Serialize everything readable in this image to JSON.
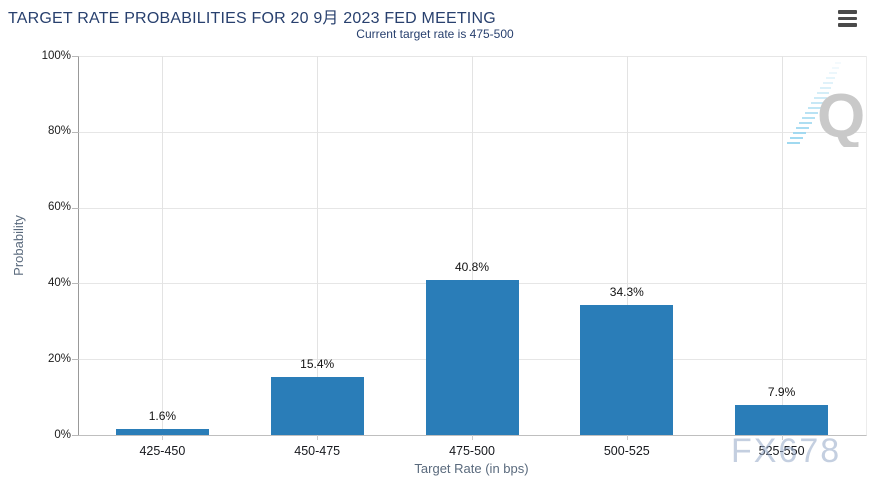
{
  "header": {
    "title": "TARGET RATE PROBABILITIES FOR 20 9月 2023 FED MEETING",
    "subtitle": "Current target rate is 475-500",
    "menu_icon": "hamburger-icon"
  },
  "chart_data": {
    "type": "bar",
    "title": "TARGET RATE PROBABILITIES FOR 20 9月 2023 FED MEETING",
    "subtitle": "Current target rate is 475-500",
    "categories": [
      "425-450",
      "450-475",
      "475-500",
      "500-525",
      "525-550"
    ],
    "values": [
      1.6,
      15.4,
      40.8,
      34.3,
      7.9
    ],
    "value_labels": [
      "1.6%",
      "15.4%",
      "40.8%",
      "34.3%",
      "7.9%"
    ],
    "xlabel": "Target Rate (in bps)",
    "ylabel": "Probability",
    "ylim": [
      0,
      100
    ],
    "yticks": [
      0,
      20,
      40,
      60,
      80,
      100
    ],
    "ytick_labels": [
      "0%",
      "20%",
      "40%",
      "60%",
      "80%",
      "100%"
    ],
    "grid": true,
    "legend": "none",
    "bar_color": "#2a7db8"
  },
  "watermarks": {
    "brand": "FX678",
    "logo_letter": "Q"
  },
  "colors": {
    "title_text": "#28406e",
    "bar": "#2a7db8",
    "axis_title_text": "#5a6a7d",
    "gridline": "#e6e6e6"
  }
}
